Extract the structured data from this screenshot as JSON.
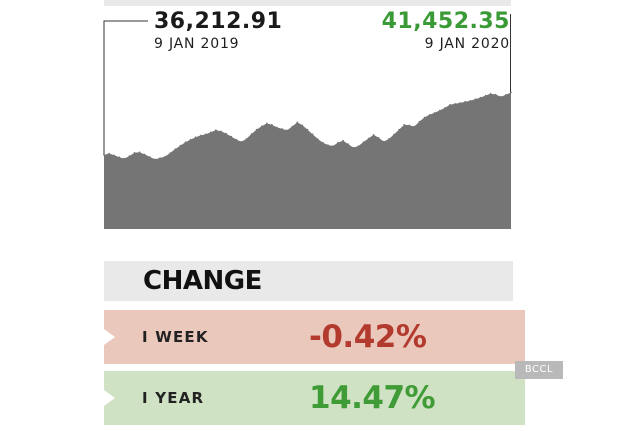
{
  "chart_data": {
    "type": "area",
    "series": [
      {
        "values": [
          36212.91,
          36330,
          36180,
          36020,
          35910,
          36120,
          36390,
          36440,
          36260,
          36050,
          35850,
          35960,
          36080,
          36380,
          36700,
          37000,
          37280,
          37500,
          37700,
          37850,
          37950,
          38120,
          38300,
          38200,
          38000,
          37760,
          37500,
          37320,
          37560,
          37980,
          38340,
          38620,
          38860,
          38750,
          38520,
          38400,
          38280,
          38600,
          38960,
          38700,
          38340,
          37950,
          37560,
          37250,
          37050,
          36960,
          37250,
          37420,
          37120,
          36830,
          36960,
          37300,
          37600,
          37900,
          37650,
          37330,
          37560,
          37940,
          38340,
          38750,
          38700,
          38600,
          39010,
          39360,
          39580,
          39750,
          39950,
          40160,
          40420,
          40500,
          40580,
          40680,
          40760,
          40900,
          41020,
          41200,
          41350,
          41280,
          41100,
          41260,
          41452.35
        ]
      }
    ],
    "start": {
      "value": "36,212.91",
      "date": "9 JAN 2019"
    },
    "end": {
      "value": "41,452.35",
      "date": "9 JAN 2020"
    },
    "ylim": [
      30000,
      42500
    ],
    "grid": false,
    "colors": {
      "area": "#757575",
      "start_value": "#1a1a1a",
      "end_value": "#3a9a35"
    }
  },
  "change": {
    "title": "CHANGE",
    "rows": [
      {
        "label": "I WEEK",
        "value": "-0.42%",
        "color": "#b23a2e",
        "background": "#ebc8bc"
      },
      {
        "label": "I YEAR",
        "value": "14.47%",
        "color": "#3f9b35",
        "background": "#cfe2c4"
      }
    ]
  },
  "credit": "BCCL"
}
